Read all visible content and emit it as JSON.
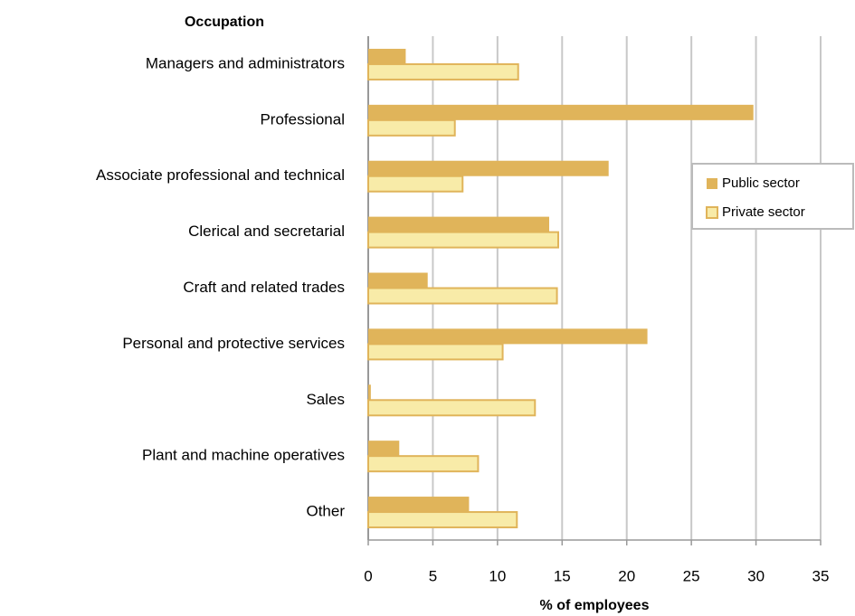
{
  "chart_data": {
    "type": "bar",
    "orientation": "horizontal",
    "y_axis_title": "Occupation",
    "x_axis_title": "% of employees",
    "categories": [
      "Managers and administrators",
      "Professional",
      "Associate professional and technical",
      "Clerical and secretarial",
      "Craft and related trades",
      "Personal and protective services",
      "Sales",
      "Plant and machine operatives",
      "Other"
    ],
    "series": [
      {
        "name": "Public sector",
        "color": "#e0b45a",
        "values": [
          2.9,
          29.8,
          18.6,
          14.0,
          4.6,
          21.6,
          0.2,
          2.4,
          7.8
        ]
      },
      {
        "name": "Private sector",
        "color": "#f8eba8",
        "values": [
          11.6,
          6.7,
          7.3,
          14.7,
          14.6,
          10.4,
          12.9,
          8.5,
          11.5
        ]
      }
    ],
    "xlim": [
      0,
      35
    ],
    "xticks": [
      0,
      5,
      10,
      15,
      20,
      25,
      30,
      35
    ],
    "grid": true,
    "legend": "right"
  }
}
